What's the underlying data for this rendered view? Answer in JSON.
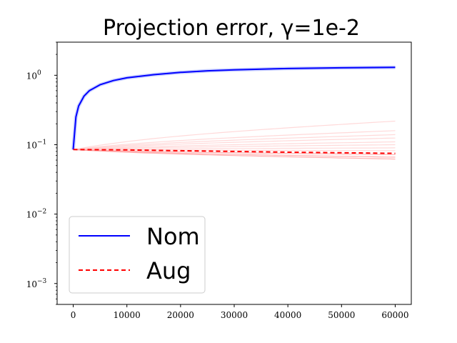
{
  "chart_data": {
    "type": "line",
    "title": "Projection error, γ=1e-2",
    "xlabel": "",
    "ylabel": "",
    "xlim": [
      -3000,
      63000
    ],
    "ylim": [
      0.0005,
      3
    ],
    "yscale": "log",
    "grid": false,
    "legend_placement": "lower-left",
    "x_ticks": [
      0,
      10000,
      20000,
      30000,
      40000,
      50000,
      60000
    ],
    "x_tick_labels": [
      "0",
      "10000",
      "20000",
      "30000",
      "40000",
      "50000",
      "60000"
    ],
    "y_ticks": [
      0.001,
      0.01,
      0.1,
      1
    ],
    "y_tick_labels": [
      "10",
      "10",
      "10",
      "10"
    ],
    "y_tick_exponents": [
      "−3",
      "−2",
      "−1",
      "0"
    ],
    "series": [
      {
        "name": "Nom",
        "color": "#0000ff",
        "style": "solid",
        "x": [
          0,
          500,
          1000,
          2000,
          3000,
          5000,
          7500,
          10000,
          15000,
          20000,
          25000,
          30000,
          40000,
          50000,
          60000
        ],
        "values": [
          0.085,
          0.25,
          0.36,
          0.5,
          0.6,
          0.73,
          0.84,
          0.92,
          1.02,
          1.1,
          1.16,
          1.2,
          1.25,
          1.28,
          1.3
        ]
      },
      {
        "name": "Aug",
        "color": "#ff0000",
        "style": "dashed",
        "x": [
          0,
          10000,
          20000,
          30000,
          40000,
          50000,
          60000
        ],
        "values": [
          0.085,
          0.084,
          0.082,
          0.08,
          0.078,
          0.0765,
          0.075
        ]
      }
    ],
    "faint_red_final_values": [
      0.22,
      0.16,
      0.14,
      0.125,
      0.11,
      0.1,
      0.09,
      0.082,
      0.072,
      0.066,
      0.062
    ],
    "faint_red_colors": [
      "#ffcccc",
      "#ff9999"
    ]
  }
}
